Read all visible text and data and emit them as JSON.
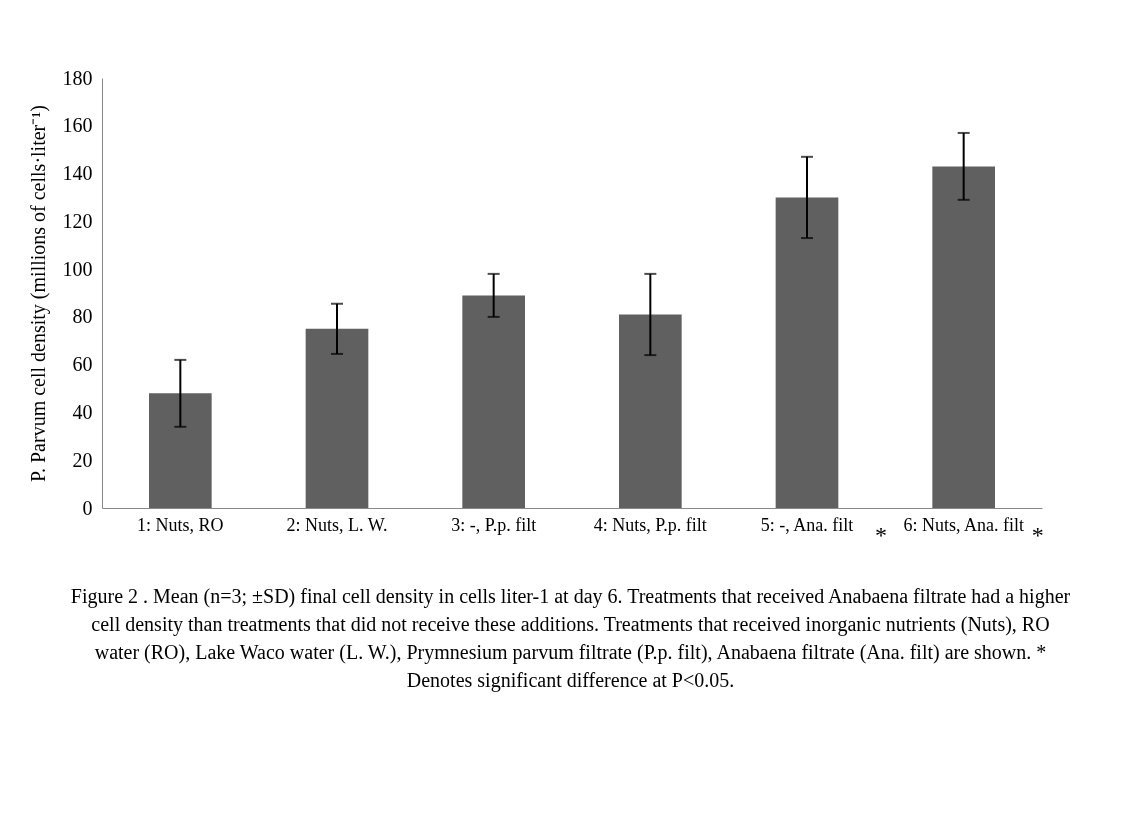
{
  "chart_data": {
    "type": "bar",
    "ylabel": "P. Parvum cell density (millions of cells·liter⁻¹)",
    "categories": [
      "1: Nuts, RO",
      "2: Nuts, L. W.",
      "3: -, P.p. filt",
      "4: Nuts, P.p. filt",
      "5: -, Ana. filt",
      "6: Nuts, Ana. filt"
    ],
    "values": [
      48,
      75,
      89,
      81,
      130,
      143
    ],
    "errors": [
      14,
      10.5,
      9,
      17,
      17,
      14
    ],
    "color": "#606060",
    "ylim": [
      0,
      180
    ],
    "yticks": [
      0,
      20,
      40,
      60,
      80,
      100,
      120,
      140,
      160,
      180
    ],
    "grid": false,
    "annotations": [
      "*",
      "*",
      "Figure 2 . Mean (n=3; ±SD) final cell density in cells liter-1 at day 6. Treatments that received Anabaena filtrate had a higher cell density than treatments that did not receive these additions. Treatments that received inorganic nutrients (Nuts), RO water (RO), Lake Waco water (L. W.), Prymnesium parvum filtrate (P.p. filt), Anabaena filtrate (Ana. filt) are shown. * Denotes significant difference at P<0.05."
    ]
  }
}
